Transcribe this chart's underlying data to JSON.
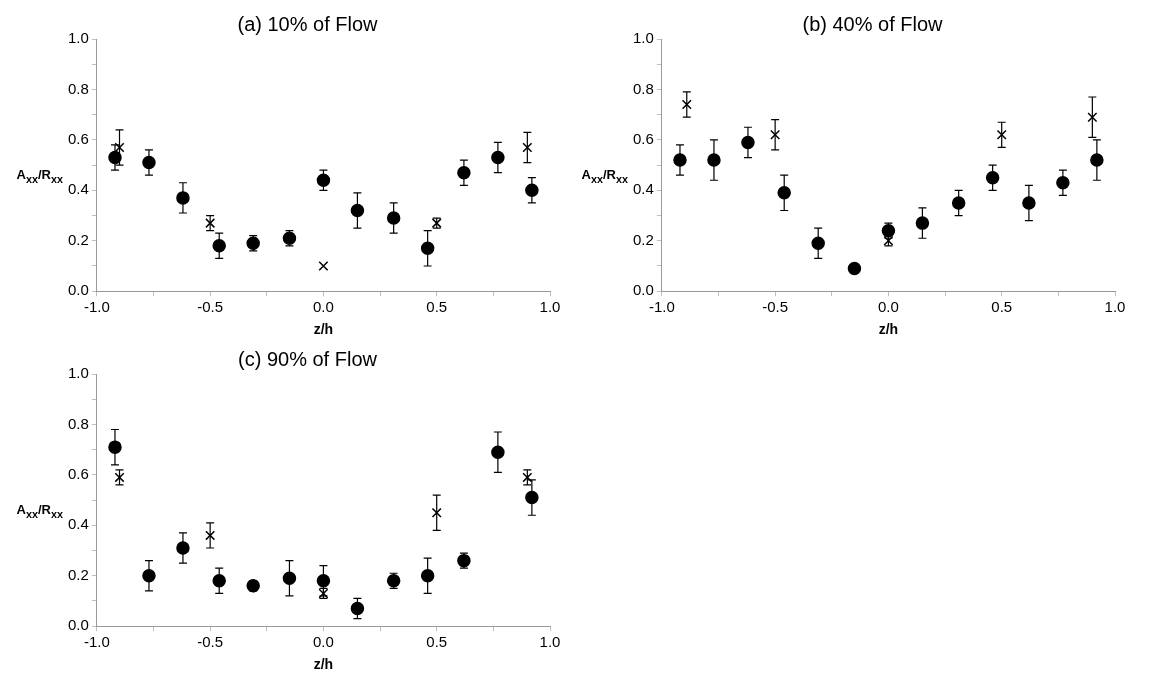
{
  "chart_data": [
    {
      "type": "scatter",
      "title": "(a) 10% of Flow",
      "xlabel": "z/h",
      "ylabel": "A$_{xx}$/R$_{xx}$",
      "xlim": [
        -1,
        1
      ],
      "ylim": [
        0,
        1
      ],
      "grid": false,
      "xticks": [
        {
          "value": -1,
          "label": "-1.0"
        },
        {
          "value": -0.75,
          "label": null
        },
        {
          "value": -0.5,
          "label": "-0.5"
        },
        {
          "value": -0.25,
          "label": null
        },
        {
          "value": 0,
          "label": "0.0"
        },
        {
          "value": 0.25,
          "label": null
        },
        {
          "value": 0.5,
          "label": "0.5"
        },
        {
          "value": 0.75,
          "label": null
        },
        {
          "value": 1,
          "label": "1.0"
        }
      ],
      "yticks": [
        {
          "value": 0,
          "label": "0.0"
        },
        {
          "value": 0.1,
          "label": null
        },
        {
          "value": 0.2,
          "label": "0.2"
        },
        {
          "value": 0.3,
          "label": null
        },
        {
          "value": 0.4,
          "label": "0.4"
        },
        {
          "value": 0.5,
          "label": null
        },
        {
          "value": 0.6,
          "label": "0.6"
        },
        {
          "value": 0.7,
          "label": null
        },
        {
          "value": 0.8,
          "label": "0.8"
        },
        {
          "value": 0.9,
          "label": null
        },
        {
          "value": 1,
          "label": "1.0"
        }
      ],
      "series": [
        {
          "color": "#000000",
          "marker": "circle",
          "x": [
            -0.92,
            -0.77,
            -0.62,
            -0.46,
            -0.31,
            -0.15,
            0,
            0.15,
            0.31,
            0.46,
            0.62,
            0.77,
            0.92
          ],
          "values": [
            0.53,
            0.51,
            0.37,
            0.18,
            0.19,
            0.21,
            0.44,
            0.32,
            0.29,
            0.17,
            0.47,
            0.53,
            0.4
          ],
          "errors": [
            0.05,
            0.05,
            0.06,
            0.05,
            0.03,
            0.03,
            0.04,
            0.07,
            0.06,
            0.07,
            0.05,
            0.06,
            0.05
          ]
        },
        {
          "color": "#000000",
          "marker": "cross",
          "x": [
            -0.9,
            -0.5,
            0,
            0.5,
            0.9
          ],
          "values": [
            0.57,
            0.27,
            0.1,
            0.27,
            0.57
          ],
          "errors": [
            0.07,
            0.03,
            null,
            0.02,
            0.06
          ]
        }
      ]
    },
    {
      "type": "scatter",
      "title": "(b) 40% of Flow",
      "xlabel": "z/h",
      "ylabel": "A$_{xx}$/R$_{xx}$",
      "xlim": [
        -1,
        1
      ],
      "ylim": [
        0,
        1
      ],
      "grid": false,
      "xticks": [
        {
          "value": -1,
          "label": "-1.0"
        },
        {
          "value": -0.75,
          "label": null
        },
        {
          "value": -0.5,
          "label": "-0.5"
        },
        {
          "value": -0.25,
          "label": null
        },
        {
          "value": 0,
          "label": "0.0"
        },
        {
          "value": 0.25,
          "label": null
        },
        {
          "value": 0.5,
          "label": "0.5"
        },
        {
          "value": 0.75,
          "label": null
        },
        {
          "value": 1,
          "label": "1.0"
        }
      ],
      "yticks": [
        {
          "value": 0,
          "label": "0.0"
        },
        {
          "value": 0.1,
          "label": null
        },
        {
          "value": 0.2,
          "label": "0.2"
        },
        {
          "value": 0.3,
          "label": null
        },
        {
          "value": 0.4,
          "label": "0.4"
        },
        {
          "value": 0.5,
          "label": null
        },
        {
          "value": 0.6,
          "label": "0.6"
        },
        {
          "value": 0.7,
          "label": null
        },
        {
          "value": 0.8,
          "label": "0.8"
        },
        {
          "value": 0.9,
          "label": null
        },
        {
          "value": 1,
          "label": "1.0"
        }
      ],
      "series": [
        {
          "color": "#000000",
          "marker": "circle",
          "x": [
            -0.92,
            -0.77,
            -0.62,
            -0.46,
            -0.31,
            -0.15,
            0,
            0.15,
            0.31,
            0.46,
            0.62,
            0.77,
            0.92
          ],
          "values": [
            0.52,
            0.52,
            0.59,
            0.39,
            0.19,
            0.09,
            0.24,
            0.27,
            0.35,
            0.45,
            0.35,
            0.43,
            0.52
          ],
          "errors": [
            0.06,
            0.08,
            0.06,
            0.07,
            0.06,
            null,
            0.03,
            0.06,
            0.05,
            0.05,
            0.07,
            0.05,
            0.08
          ]
        },
        {
          "color": "#000000",
          "marker": "cross",
          "x": [
            -0.89,
            -0.5,
            0,
            0.5,
            0.9
          ],
          "values": [
            0.74,
            0.62,
            0.2,
            0.62,
            0.69
          ],
          "errors": [
            0.05,
            0.06,
            0.02,
            0.05,
            0.08
          ]
        }
      ]
    },
    {
      "type": "scatter",
      "title": "(c) 90% of Flow",
      "xlabel": "z/h",
      "ylabel": "A$_{xx}$/R$_{xx}$",
      "xlim": [
        -1,
        1
      ],
      "ylim": [
        0,
        1
      ],
      "grid": false,
      "xticks": [
        {
          "value": -1,
          "label": "-1.0"
        },
        {
          "value": -0.75,
          "label": null
        },
        {
          "value": -0.5,
          "label": "-0.5"
        },
        {
          "value": -0.25,
          "label": null
        },
        {
          "value": 0,
          "label": "0.0"
        },
        {
          "value": 0.25,
          "label": null
        },
        {
          "value": 0.5,
          "label": "0.5"
        },
        {
          "value": 0.75,
          "label": null
        },
        {
          "value": 1,
          "label": "1.0"
        }
      ],
      "yticks": [
        {
          "value": 0,
          "label": "0.0"
        },
        {
          "value": 0.1,
          "label": null
        },
        {
          "value": 0.2,
          "label": "0.2"
        },
        {
          "value": 0.3,
          "label": null
        },
        {
          "value": 0.4,
          "label": "0.4"
        },
        {
          "value": 0.5,
          "label": null
        },
        {
          "value": 0.6,
          "label": "0.6"
        },
        {
          "value": 0.7,
          "label": null
        },
        {
          "value": 0.8,
          "label": "0.8"
        },
        {
          "value": 0.9,
          "label": null
        },
        {
          "value": 1,
          "label": "1.0"
        }
      ],
      "series": [
        {
          "color": "#000000",
          "marker": "circle",
          "x": [
            -0.92,
            -0.77,
            -0.62,
            -0.46,
            -0.31,
            -0.15,
            0,
            0.15,
            0.31,
            0.46,
            0.62,
            0.77,
            0.92
          ],
          "values": [
            0.71,
            0.2,
            0.31,
            0.18,
            0.16,
            0.19,
            0.18,
            0.07,
            0.18,
            0.2,
            0.26,
            0.69,
            0.51
          ],
          "errors": [
            0.07,
            0.06,
            0.06,
            0.05,
            0.02,
            0.07,
            0.06,
            0.04,
            0.03,
            0.07,
            0.03,
            0.08,
            0.07
          ]
        },
        {
          "color": "#000000",
          "marker": "cross",
          "x": [
            -0.9,
            -0.5,
            0,
            0.5,
            0.9
          ],
          "values": [
            0.59,
            0.36,
            0.13,
            0.45,
            0.59
          ],
          "errors": [
            0.03,
            0.05,
            0.02,
            0.07,
            0.03
          ]
        }
      ]
    }
  ]
}
